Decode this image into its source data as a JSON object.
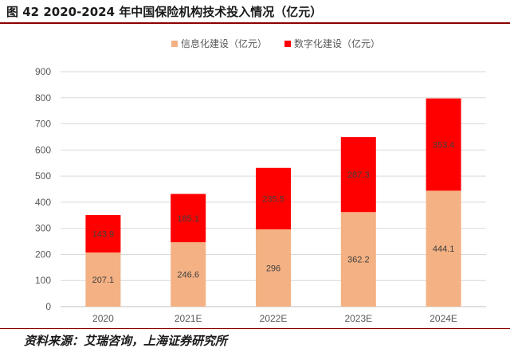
{
  "title": "图 42 2020-2024 年中国保险机构技术投入情况（亿元）",
  "source": "资料来源：艾瑞咨询，上海证券研究所",
  "chart_data": {
    "type": "bar",
    "stacked": true,
    "categories": [
      "2020",
      "2021E",
      "2022E",
      "2023E",
      "2024E"
    ],
    "series": [
      {
        "name": "信息化建设（亿元）",
        "values": [
          207.1,
          246.6,
          296,
          362.2,
          444.1
        ],
        "color": "#f4b183"
      },
      {
        "name": "数字化建设（亿元）",
        "values": [
          143.9,
          185.1,
          235.5,
          287.3,
          353.4
        ],
        "color": "#ff0000"
      }
    ],
    "value_labels": [
      [
        "207.1",
        "246.6",
        "296",
        "362.2",
        "444.1"
      ],
      [
        "143.9",
        "185.1",
        "235.5",
        "287.3",
        "353.4"
      ]
    ],
    "yticks": [
      "0",
      "100",
      "200",
      "300",
      "400",
      "500",
      "600",
      "700",
      "800",
      "900"
    ],
    "ylim": [
      0,
      900
    ],
    "grid": true,
    "legend": "top"
  }
}
